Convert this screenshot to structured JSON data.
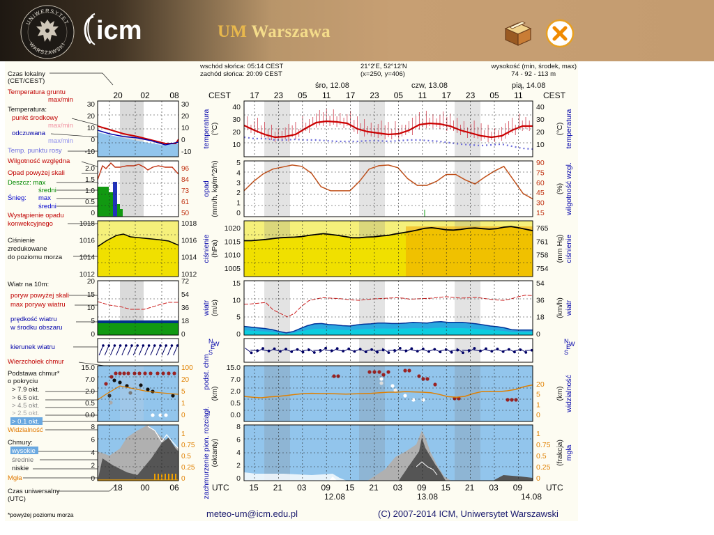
{
  "header": {
    "title_um": "UM",
    "title_city": "Warszawa",
    "logo_text": "icm",
    "seal_top_text": "UNIWERSYTET",
    "seal_bottom_text": "WARSZAWSKI",
    "background": "#c49c70",
    "title_color": "#f4dc8a",
    "box_icon": "package-box-icon",
    "close_icon": "close-circle-icon"
  },
  "info": {
    "sunrise": "wschód słońca: 05:14 CEST",
    "sunset": "zachód słońca: 20:09 CEST",
    "coords": "21°2'E, 52°12'N",
    "grid": "(x=250, y=406)",
    "elevation_label": "wysokość (min, środek, max)",
    "elevation_values": "74 - 92 - 113 m"
  },
  "days": {
    "wed": "śro, 12.08",
    "thu": "czw, 13.08",
    "fri": "pią, 14.08",
    "bottom_wed": "12.08",
    "bottom_thu": "13.08",
    "bottom_fri": "14.08"
  },
  "time_axis": {
    "cest_label": "CEST",
    "utc_label": "UTC",
    "cest_ticks": [
      "17",
      "23",
      "05",
      "11",
      "17",
      "23",
      "05",
      "11",
      "17",
      "23",
      "05",
      "11"
    ],
    "utc_ticks": [
      "15",
      "21",
      "03",
      "09",
      "15",
      "21",
      "03",
      "09",
      "15",
      "21",
      "03",
      "09"
    ],
    "left_cest_ticks": [
      "20",
      "02",
      "08"
    ],
    "left_utc_ticks": [
      "18",
      "00",
      "06"
    ]
  },
  "legend": {
    "local_time": "Czas lokalny",
    "local_time_sub": "(CET/CEST)",
    "ground_temp": "Temperatura gruntu",
    "maxmin": "max/min",
    "temperature": "Temperatura:",
    "mid_point": "punkt środkowy",
    "felt": "odczuwana",
    "dew_point": "Temp. punktu rosy",
    "humidity": "Wilgotność względna",
    "precip_above": "Opad powyżej skali",
    "rain": "Deszcz: max",
    "rain_mid": "średni",
    "snow": "Śnieg:",
    "snow_max": "max",
    "snow_mid": "średni",
    "convective1": "Wystąpienie opadu",
    "convective2": "konwekcyjnego",
    "pressure1": "Ciśnienie",
    "pressure2": "zredukowane",
    "pressure3": "do poziomu morza",
    "wind_at": "Wiatr na 10m:",
    "gust_above": "poryw powyżej skali",
    "gust_max": "max porywy wiatru",
    "wind_speed1": "prędkość wiatru",
    "wind_speed2": "w środku obszaru",
    "wind_dir": "kierunek wiatru",
    "cloud_top": "Wierzchołek chmur",
    "cloud_base1": "Podstawa chmur*",
    "cloud_base2": "o pokryciu",
    "okt79": "> 7.9 okt.",
    "okt65": "> 6.5 okt.",
    "okt45": "> 4.5 okt.",
    "okt25": "> 2.5 okt.",
    "okt01": "> 0.1 okt.",
    "visibility": "Widzialność",
    "clouds": "Chmury:",
    "high": "wysokie",
    "medium": "średnie",
    "low": "niskie",
    "fog": "Mgła",
    "utc1": "Czas uniwersalny",
    "utc2": "(UTC)",
    "footnote": "*powyżej poziomu morza"
  },
  "axis_titles": {
    "temp_left": "temperatura",
    "temp_left_unit": "(°C)",
    "temp_right": "temperatura",
    "temp_right_unit": "(°C)",
    "precip_left": "opad",
    "precip_left_unit": "(mm/h, kg/m^2/h)",
    "precip_right": "wilgotność wzgl.",
    "precip_right_unit": "(%)",
    "pres_left": "ciśnienie",
    "pres_left_unit": "(hPa)",
    "pres_right": "ciśnienie",
    "pres_right_unit": "(mm Hg)",
    "wind_left": "wiatr",
    "wind_left_unit": "(m/s)",
    "wind_right": "wiatr",
    "wind_right_unit": "(km/h)",
    "cloud_left": "podst. chm",
    "cloud_left_unit": "(km)",
    "cloud_right": "widzialność",
    "cloud_right_unit": "(km)",
    "cover_left": "zachmurzenie pion. rozciągł.",
    "cover_left_unit": "(oktanty)",
    "cover_right": "mgła",
    "cover_right_unit": "(frakcja)"
  },
  "compass": [
    "S",
    "E",
    "N",
    "W"
  ],
  "scales": {
    "temp": [
      "40",
      "30",
      "20",
      "10"
    ],
    "temp_small": [
      "30",
      "20",
      "10",
      "0",
      "-10"
    ],
    "precip": [
      "5",
      "4",
      "3",
      "2",
      "1",
      "0"
    ],
    "precip_small": [
      "2.0",
      "1.5",
      "1.0",
      "0.5",
      "0"
    ],
    "humidity": [
      "90",
      "75",
      "60",
      "45",
      "30",
      "15"
    ],
    "humidity_small": [
      "96",
      "84",
      "73",
      "61",
      "50"
    ],
    "pres": [
      "1020",
      "1015",
      "1010",
      "1005"
    ],
    "pres_small": [
      "1018",
      "1016",
      "1014",
      "1012"
    ],
    "mmhg": [
      "765",
      "761",
      "758",
      "754"
    ],
    "wind": [
      "15",
      "10",
      "5",
      "0"
    ],
    "wind_small": [
      "20",
      "15",
      "10",
      "5",
      "0"
    ],
    "kmh": [
      "54",
      "36",
      "18",
      "0"
    ],
    "kmh_small": [
      "72",
      "54",
      "36",
      "18",
      "0"
    ],
    "cbase": [
      "15.0",
      "7.0",
      "2.0",
      "0.5",
      "0.0"
    ],
    "vis": [
      "20",
      "5",
      "1",
      "0"
    ],
    "vis_small": [
      "100",
      "20",
      "5",
      "1",
      "0"
    ],
    "okt": [
      "8",
      "6",
      "4",
      "2",
      "0"
    ],
    "frac": [
      "1",
      "0.75",
      "0.5",
      "0.25",
      "0"
    ]
  },
  "series": {
    "temp_c": [
      27.5,
      24,
      21,
      19,
      19.5,
      21,
      25.5,
      29.5,
      30.5,
      30,
      29,
      25,
      23,
      22,
      21,
      21.5,
      24,
      28,
      29,
      28.5,
      27,
      24,
      22,
      20,
      19,
      20,
      24,
      27,
      27
    ],
    "dew_c": [
      19,
      18,
      18,
      17,
      17,
      17.5,
      17,
      17,
      16.5,
      16,
      16,
      16,
      16.5,
      16.5,
      16,
      16.5,
      17,
      17,
      16.5,
      16,
      15,
      14,
      13.5,
      13,
      13.5,
      14,
      12.5,
      11,
      10.5
    ],
    "humidity_pct": [
      48,
      62,
      73,
      80,
      83,
      86,
      84,
      74,
      54,
      48,
      48,
      48,
      62,
      80,
      85,
      86,
      82,
      66,
      56,
      56,
      62,
      72,
      72,
      64,
      58,
      68,
      77,
      84,
      64,
      44,
      36
    ],
    "pressure_hpa": [
      1015.2,
      1015.2,
      1015.4,
      1015.6,
      1015.9,
      1016.2,
      1016.3,
      1016.4,
      1016.6,
      1017,
      1017.3,
      1017.6,
      1017.3,
      1017,
      1016.6,
      1016.2,
      1016.2,
      1016.4,
      1016.5,
      1016.8,
      1017,
      1017.5,
      1017.9,
      1018.3,
      1018.8,
      1019.4,
      1019.6,
      1019.3,
      1018.9,
      1018.8,
      1019,
      1019.4,
      1019.5,
      1019.3,
      1019.1,
      1019.3,
      1019.8,
      1020,
      1019.6,
      1019.1,
      1018.6
    ],
    "wind_ms": [
      2.4,
      2.2,
      2,
      1.8,
      1.5,
      1,
      0.6,
      1,
      1.8,
      2.6,
      3.1,
      3.2,
      2.9,
      2.8,
      2.6,
      2.5,
      2.8,
      3,
      3.1,
      3.3,
      3.3,
      3.2,
      3.2,
      3.3,
      3.5,
      3.4,
      3.3,
      3.6,
      3.7,
      3.5,
      3.5,
      3.5,
      3.3,
      3.1,
      2.8,
      2.5,
      2.3,
      2,
      1.5,
      1.4,
      1.4,
      1.4
    ],
    "gust_ms": [
      8.5,
      8.6,
      8.8,
      9,
      7,
      6,
      5,
      6,
      8,
      9.5,
      10,
      10.3,
      10.2,
      10.1,
      9.9,
      9.7,
      9.6,
      9.8,
      10,
      10.1,
      10.2,
      10.3,
      10.2,
      9.9,
      10,
      10.1,
      10.2,
      10.4,
      10.6,
      10.4,
      10.2,
      10.3,
      10.4,
      10.2,
      9.9,
      9.7,
      9.6,
      10,
      10.6,
      11,
      10.9
    ],
    "visibility_km": [
      1.5,
      1.2,
      1,
      1.3,
      1.5,
      1.8,
      2.2,
      2.5,
      2.6,
      2.5,
      2.5,
      2.4,
      2.3,
      2.4,
      2.5,
      2.6,
      2.8,
      3,
      3,
      3.2,
      3.1,
      3,
      2.8,
      2.2,
      1.4,
      1.2,
      1.5,
      2.5,
      3.2,
      3.3,
      3.2,
      3.5,
      4,
      5,
      5.6
    ]
  },
  "footer": {
    "email": "meteo-um@icm.edu.pl",
    "copyright": "(C) 2007-2014 ICM, Uniwersytet Warszawski"
  }
}
